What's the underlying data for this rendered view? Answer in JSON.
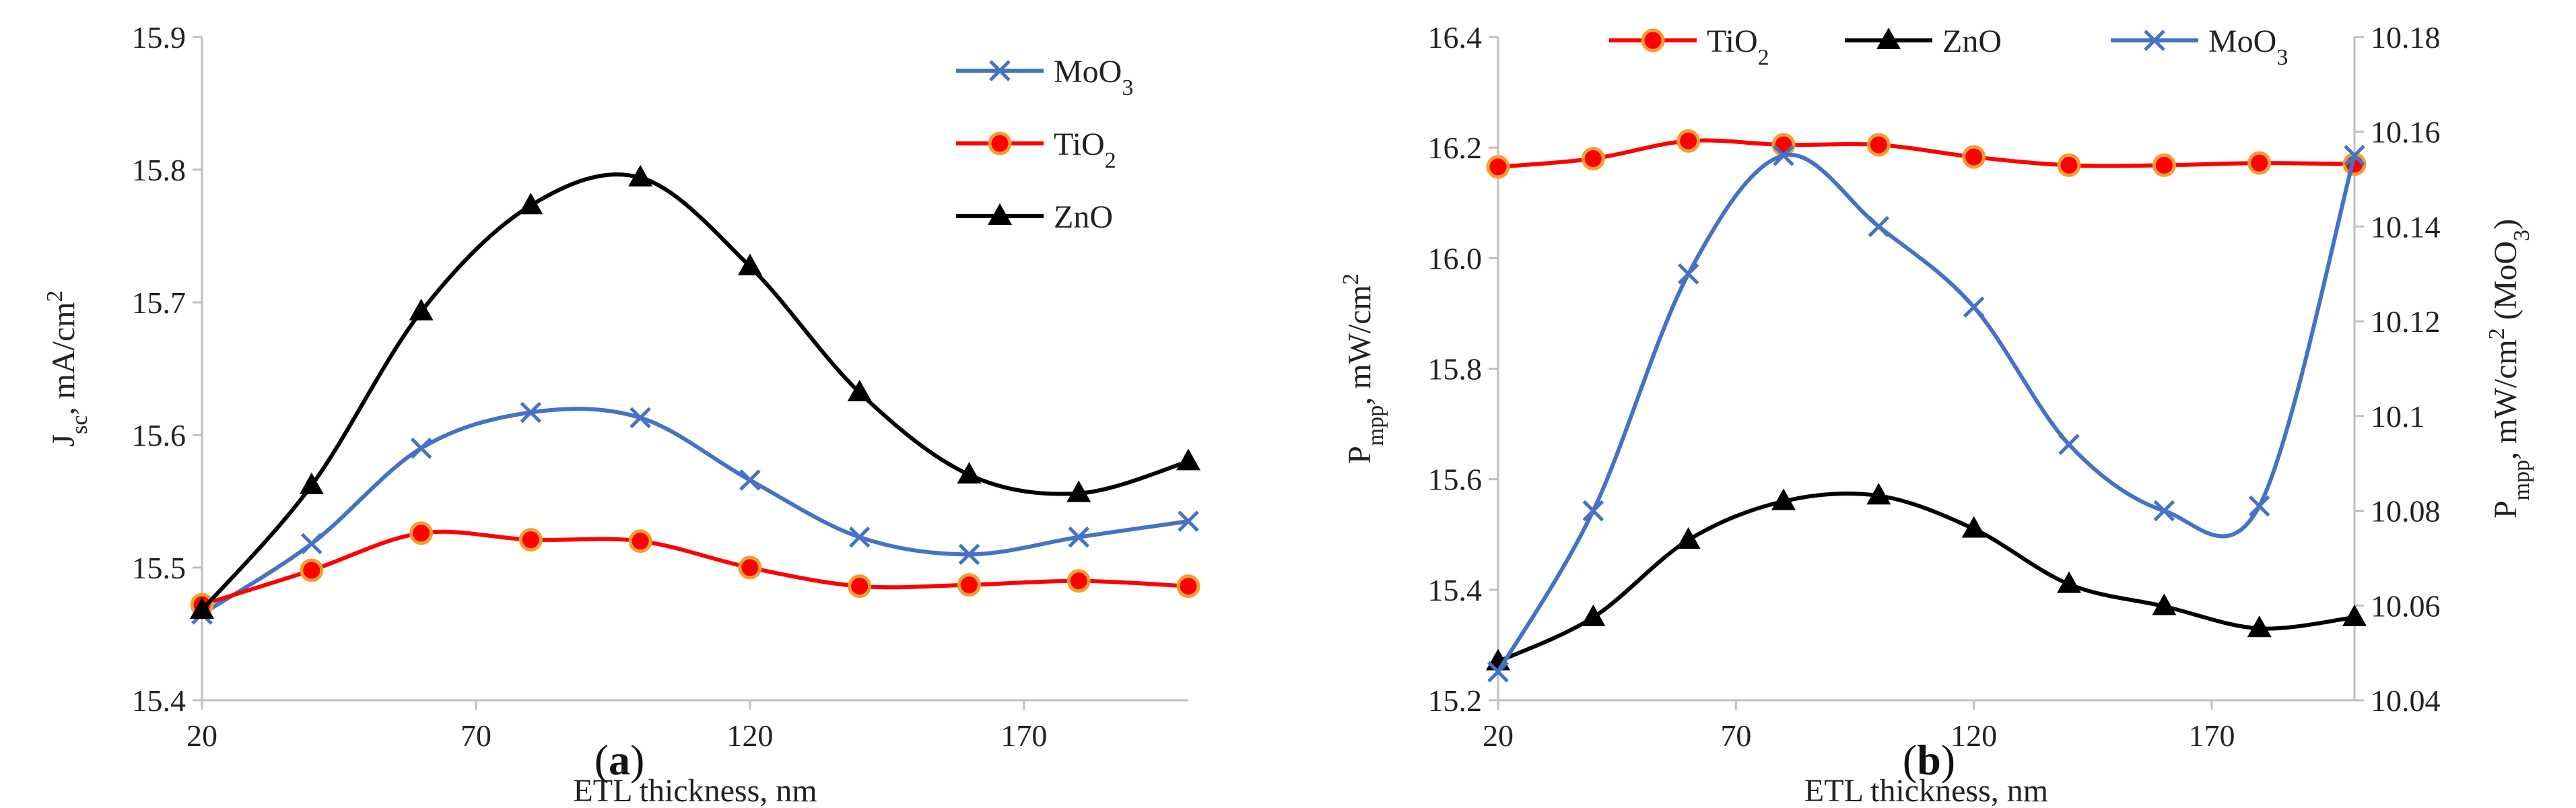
{
  "chart_data": [
    {
      "type": "line",
      "panel": "a",
      "caption": {
        "open": "(",
        "letter": "a",
        "close": ")"
      },
      "x": [
        20,
        40,
        60,
        80,
        100,
        120,
        140,
        160,
        180,
        200
      ],
      "xticks": [
        20,
        70,
        120,
        170
      ],
      "xlim": [
        20,
        200
      ],
      "ylim": [
        15.4,
        15.9
      ],
      "yticks": [
        "15.4",
        "15.5",
        "15.6",
        "15.7",
        "15.8",
        "15.9"
      ],
      "xlabel": "ETL thickness, nm",
      "ylabel": {
        "main": "J",
        "sub": "sc",
        "rest": ", mA/cm",
        "sup": "2"
      },
      "legend_position": "top-right",
      "series": [
        {
          "name": "MoO3",
          "label_main": "MoO",
          "label_sub": "3",
          "color": "#4472C4",
          "marker": "x",
          "values": [
            15.465,
            15.518,
            15.59,
            15.617,
            15.613,
            15.566,
            15.523,
            15.51,
            15.523,
            15.535
          ]
        },
        {
          "name": "TiO2",
          "label_main": "TiO",
          "label_sub": "2",
          "color": "#FF0000",
          "marker": "circle",
          "values": [
            15.472,
            15.498,
            15.526,
            15.521,
            15.52,
            15.5,
            15.486,
            15.487,
            15.49,
            15.486
          ]
        },
        {
          "name": "ZnO",
          "label_main": "ZnO",
          "label_sub": "",
          "color": "#000000",
          "marker": "triangle",
          "values": [
            15.468,
            15.562,
            15.693,
            15.773,
            15.794,
            15.727,
            15.632,
            15.57,
            15.556,
            15.58
          ]
        }
      ]
    },
    {
      "type": "line",
      "panel": "b",
      "caption": {
        "open": "(",
        "letter": "b",
        "close": ")"
      },
      "x": [
        20,
        40,
        60,
        80,
        100,
        120,
        140,
        160,
        180,
        200
      ],
      "xticks": [
        20,
        70,
        120,
        170
      ],
      "xlim": [
        20,
        200
      ],
      "ylim": [
        15.2,
        16.4
      ],
      "yticks": [
        "15.2",
        "15.4",
        "15.6",
        "15.8",
        "16.0",
        "16.2",
        "16.4"
      ],
      "y2lim": [
        10.04,
        10.18
      ],
      "y2ticks": [
        "10.04",
        "10.06",
        "10.08",
        "10.1",
        "10.12",
        "10.14",
        "10.16",
        "10.18"
      ],
      "xlabel": "ETL thickness, nm",
      "ylabel": {
        "main": "P",
        "sub": "mpp",
        "rest": ", mW/cm",
        "sup": "2"
      },
      "y2label": {
        "main": "P",
        "sub": "mpp",
        "rest": ", mW/cm",
        "sup": "2",
        "tail_main": " (MoO",
        "tail_sub": "3",
        "tail_end": ")"
      },
      "legend_position": "top",
      "series": [
        {
          "name": "TiO2",
          "label_main": "TiO",
          "label_sub": "2",
          "color": "#FF0000",
          "marker": "circle",
          "axis": "left",
          "values": [
            16.165,
            16.18,
            16.212,
            16.205,
            16.205,
            16.183,
            16.168,
            16.168,
            16.172,
            16.17
          ]
        },
        {
          "name": "ZnO",
          "label_main": "ZnO",
          "label_sub": "",
          "color": "#000000",
          "marker": "triangle",
          "axis": "left",
          "values": [
            15.27,
            15.35,
            15.49,
            15.56,
            15.57,
            15.51,
            15.41,
            15.37,
            15.33,
            15.35
          ]
        },
        {
          "name": "MoO3",
          "label_main": "MoO",
          "label_sub": "3",
          "color": "#4472C4",
          "marker": "x",
          "axis": "right",
          "values": [
            10.046,
            10.08,
            10.13,
            10.155,
            10.14,
            10.123,
            10.094,
            10.08,
            10.081,
            10.155
          ]
        }
      ]
    }
  ]
}
